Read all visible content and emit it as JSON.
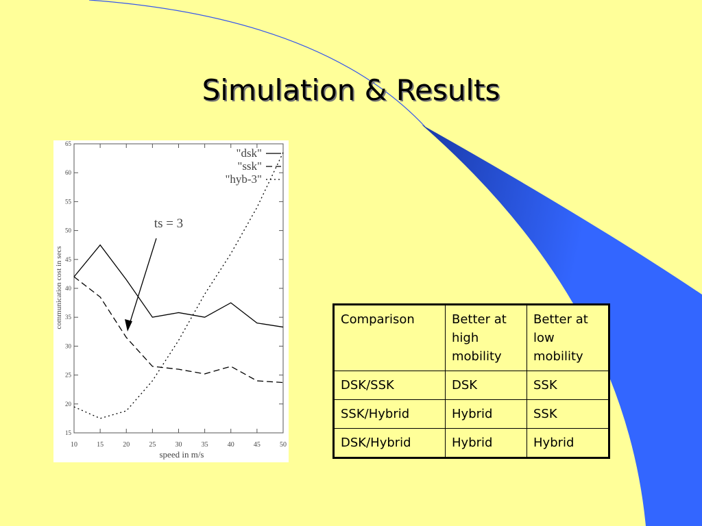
{
  "title": "Simulation & Results",
  "chart_data": {
    "type": "line",
    "x_label": "speed in m/s",
    "y_label": "communication cost in secs",
    "annotation": "ts = 3",
    "x": [
      10,
      15,
      20,
      25,
      30,
      35,
      40,
      45,
      50
    ],
    "xlim": [
      10,
      50
    ],
    "xticks": [
      10,
      15,
      20,
      25,
      30,
      35,
      40,
      45,
      50
    ],
    "ylim": [
      15,
      65
    ],
    "yticks": [
      15,
      20,
      25,
      30,
      35,
      40,
      45,
      50,
      55,
      60,
      65
    ],
    "grid": false,
    "legend": "top-right",
    "series": [
      {
        "name": "\"dsk\"",
        "color": "#000000",
        "dash": "solid",
        "values": [
          42,
          47.5,
          41.5,
          35,
          35.8,
          35,
          37.5,
          34,
          33.3
        ]
      },
      {
        "name": "\"ssk\"",
        "color": "#000000",
        "dash": "dashed",
        "values": [
          42,
          38.5,
          31.5,
          26.5,
          26,
          25.2,
          26.5,
          24,
          23.7
        ]
      },
      {
        "name": "\"hyb-3\"",
        "color": "#000000",
        "dash": "dotted",
        "values": [
          19.5,
          17.5,
          18.8,
          24,
          31,
          39,
          46,
          54,
          63.5
        ]
      }
    ]
  },
  "table": {
    "header": [
      "Comparison",
      "Better at high mobility",
      "Better at low mobility"
    ],
    "rows": [
      [
        "DSK/SSK",
        "DSK",
        "SSK"
      ],
      [
        "SSK/Hybrid",
        "Hybrid",
        "SSK"
      ],
      [
        "DSK/Hybrid",
        "Hybrid",
        "Hybrid"
      ]
    ]
  }
}
